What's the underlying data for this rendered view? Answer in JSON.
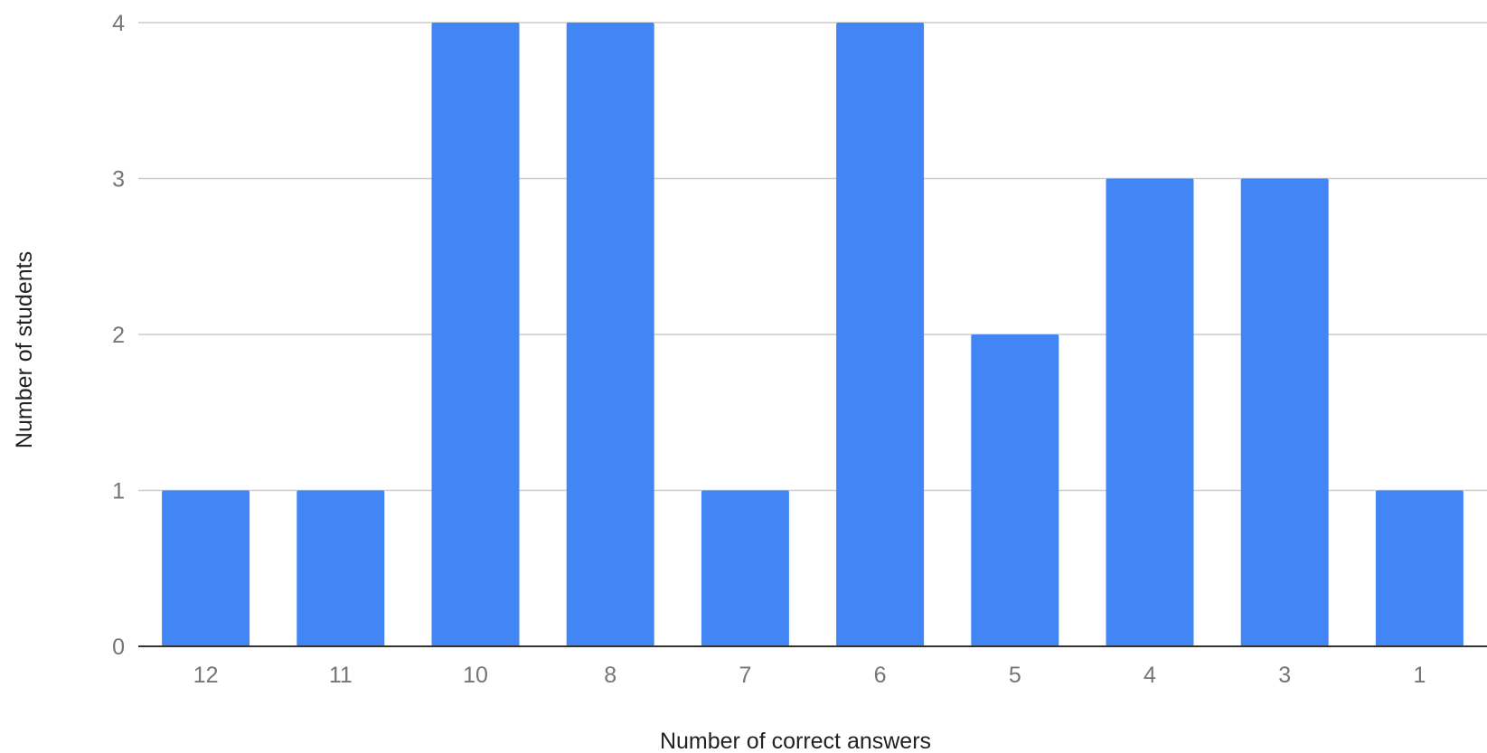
{
  "chart_data": {
    "type": "bar",
    "title": "",
    "xlabel": "Number of correct answers",
    "ylabel": "Number of students",
    "categories": [
      "12",
      "11",
      "10",
      "8",
      "7",
      "6",
      "5",
      "4",
      "3",
      "1"
    ],
    "values": [
      1,
      1,
      4,
      4,
      1,
      4,
      2,
      3,
      3,
      1
    ],
    "ylim": [
      0,
      4
    ],
    "yticks": [
      "0",
      "1",
      "2",
      "3",
      "4"
    ],
    "grid": true,
    "legend": "none",
    "colors": {
      "bar": "#4285f4",
      "grid": "#cccccc",
      "baseline": "#333333"
    }
  }
}
